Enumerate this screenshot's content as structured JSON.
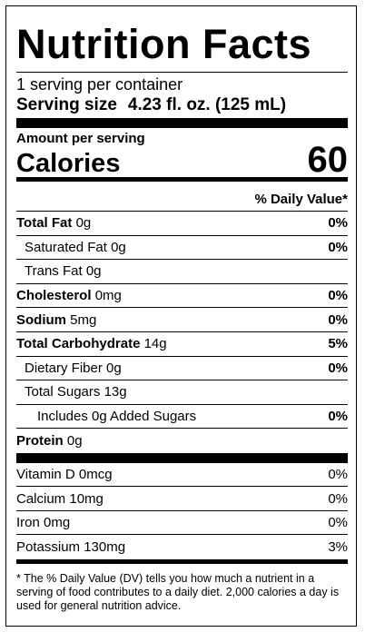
{
  "title": "Nutrition Facts",
  "servings": "1 serving per container",
  "serving_size": {
    "label": "Serving size",
    "value": "4.23 fl. oz. (125 mL)"
  },
  "amount_per_serving": "Amount per serving",
  "calories": {
    "label": "Calories",
    "value": "60"
  },
  "daily_value_header": "% Daily Value*",
  "nutrients": [
    {
      "name": "Total Fat",
      "amount": "0g",
      "dv": "0%"
    },
    {
      "name": "Saturated Fat",
      "amount": "0g",
      "dv": "0%"
    },
    {
      "name": "Trans Fat",
      "amount": "0g"
    },
    {
      "name": "Cholesterol",
      "amount": "0mg",
      "dv": "0%"
    },
    {
      "name": "Sodium",
      "amount": "5mg",
      "dv": "0%"
    },
    {
      "name": "Total Carbohydrate",
      "amount": "14g",
      "dv": "5%"
    },
    {
      "name": "Dietary Fiber",
      "amount": "0g",
      "dv": "0%"
    },
    {
      "name": "Total Sugars",
      "amount": "13g"
    },
    {
      "name": "Includes 0g Added Sugars",
      "dv": "0%"
    },
    {
      "name": "Protein",
      "amount": "0g"
    }
  ],
  "vitamins": [
    {
      "name": "Vitamin D",
      "amount": "0mcg",
      "dv": "0%"
    },
    {
      "name": "Calcium",
      "amount": "10mg",
      "dv": "0%"
    },
    {
      "name": "Iron",
      "amount": "0mg",
      "dv": "0%"
    },
    {
      "name": "Potassium",
      "amount": "130mg",
      "dv": "3%"
    }
  ],
  "footnote": "* The % Daily Value (DV) tells you how much a nutrient in a serving of food contributes to a daily diet. 2,000 calories a day is used for general nutrition advice."
}
